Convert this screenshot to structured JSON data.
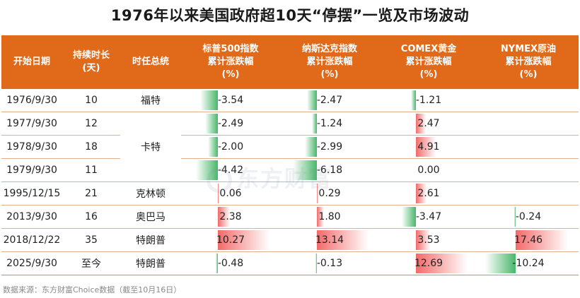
{
  "title": "1976年以来美国政府超10天“停摆”一览及市场波动",
  "source": "数据来源：东方财富Choice数据（截至10月16日）",
  "watermark": "东方财富",
  "header": {
    "start_date": "开始日期",
    "duration_line1": "持续时长",
    "duration_line2": "(天)",
    "president": "时任总统",
    "sp500_line1": "标普500指数",
    "sp500_line2": "累计涨跌幅",
    "sp500_line3": "(%)",
    "nasdaq_line1": "纳斯达克指数",
    "nasdaq_line2": "累计涨跌幅",
    "nasdaq_line3": "(%)",
    "gold_line1": "COMEX黄金",
    "gold_line2": "累计涨跌幅",
    "gold_line3": "(%)",
    "oil_line1": "NYMEX原油",
    "oil_line2": "累计涨跌幅",
    "oil_line3": "(%)"
  },
  "colors": {
    "header_bg": "#e06a1a",
    "positive": "#f05050",
    "negative": "#28aa50"
  },
  "chart_data": {
    "type": "table",
    "title": "1976年以来美国政府超10天“停摆”一览及市场波动",
    "columns": [
      "开始日期",
      "持续时长(天)",
      "时任总统",
      "标普500指数累计涨跌幅(%)",
      "纳斯达克指数累计涨跌幅(%)",
      "COMEX黄金累计涨跌幅(%)",
      "NYMEX原油累计涨跌幅(%)"
    ],
    "presidents": [
      {
        "name": "福特",
        "rows": 1
      },
      {
        "name": "卡特",
        "rows": 3
      },
      {
        "name": "克林顿",
        "rows": 1
      },
      {
        "name": "奥巴马",
        "rows": 1
      },
      {
        "name": "特朗普",
        "rows": 1
      },
      {
        "name": "特朗普",
        "rows": 1
      }
    ],
    "rows": [
      {
        "date": "1976/9/30",
        "duration": "10",
        "sp500": "-3.54",
        "nasdaq": "-2.47",
        "gold": "-1.21",
        "oil": ""
      },
      {
        "date": "1977/9/30",
        "duration": "12",
        "sp500": "-2.49",
        "nasdaq": "-1.24",
        "gold": "2.47",
        "oil": ""
      },
      {
        "date": "1978/9/30",
        "duration": "18",
        "sp500": "-2.00",
        "nasdaq": "-2.99",
        "gold": "4.91",
        "oil": ""
      },
      {
        "date": "1979/9/30",
        "duration": "11",
        "sp500": "-4.42",
        "nasdaq": "-6.18",
        "gold": "0.00",
        "oil": ""
      },
      {
        "date": "1995/12/15",
        "duration": "21",
        "sp500": "0.06",
        "nasdaq": "0.29",
        "gold": "2.61",
        "oil": ""
      },
      {
        "date": "2013/9/30",
        "duration": "16",
        "sp500": "2.38",
        "nasdaq": "1.80",
        "gold": "-3.47",
        "oil": "-0.24"
      },
      {
        "date": "2018/12/22",
        "duration": "35",
        "sp500": "10.27",
        "nasdaq": "13.14",
        "gold": "3.53",
        "oil": "17.46"
      },
      {
        "date": "2025/9/30",
        "duration": "至今",
        "sp500": "-0.48",
        "nasdaq": "-0.13",
        "gold": "12.69",
        "oil": "-10.24"
      }
    ]
  }
}
